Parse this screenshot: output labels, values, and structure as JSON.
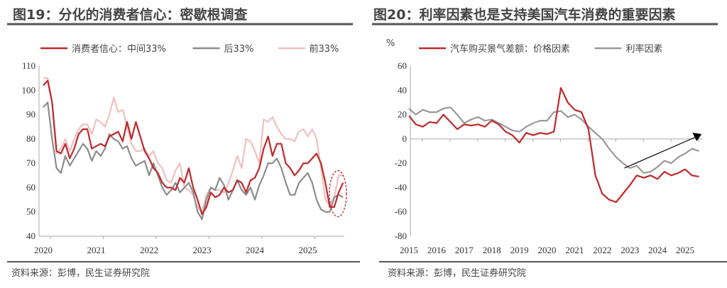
{
  "chart_data": [
    {
      "type": "line",
      "title": "图19：分化的消费者信心：密歇根调查",
      "source": "资料来源：彭博，民生证券研究院",
      "ylim": [
        40,
        110
      ],
      "yticks": [
        40,
        50,
        60,
        70,
        80,
        90,
        100,
        110
      ],
      "xticks": [
        "2020",
        "2021",
        "2022",
        "2023",
        "2024",
        "2025"
      ],
      "x_start": "2020-01",
      "frequency": "monthly",
      "series": [
        {
          "name": "消费者信心：中间33%",
          "color": "#c0282a",
          "values": [
            102,
            104,
            95,
            75,
            74,
            78,
            72,
            76,
            82,
            84,
            84,
            76,
            77,
            78,
            77,
            81,
            82,
            83,
            79,
            87,
            80,
            87,
            81,
            75,
            72,
            68,
            66,
            62,
            60,
            60,
            59,
            64,
            62,
            68,
            60,
            55,
            49,
            52,
            58,
            56,
            57,
            60,
            58,
            59,
            63,
            62,
            58,
            63,
            64,
            68,
            76,
            81,
            73,
            78,
            78,
            70,
            68,
            65,
            67,
            70,
            70,
            72,
            74,
            70,
            62,
            52,
            52,
            58,
            62
          ]
        },
        {
          "name": "后33%",
          "color": "#8c8c8c",
          "values": [
            93,
            95,
            80,
            68,
            66,
            73,
            69,
            72,
            75,
            78,
            76,
            71,
            75,
            73,
            76,
            82,
            80,
            79,
            76,
            77,
            72,
            69,
            70,
            71,
            65,
            70,
            65,
            60,
            57,
            59,
            62,
            58,
            60,
            62,
            58,
            50,
            47,
            55,
            60,
            59,
            64,
            61,
            55,
            59,
            63,
            59,
            57,
            60,
            55,
            61,
            65,
            70,
            70,
            72,
            68,
            62,
            57,
            57,
            62,
            64,
            66,
            62,
            55,
            51,
            50,
            50,
            56,
            57,
            56
          ]
        },
        {
          "name": "前33%",
          "color": "#f0c0c0",
          "values": [
            105,
            105,
            95,
            74,
            76,
            80,
            75,
            80,
            84,
            86,
            86,
            82,
            88,
            87,
            85,
            90,
            97,
            91,
            92,
            85,
            78,
            75,
            75,
            76,
            73,
            75,
            70,
            68,
            63,
            62,
            67,
            70,
            60,
            59,
            57,
            52,
            50,
            57,
            60,
            59,
            59,
            58,
            62,
            67,
            73,
            68,
            80,
            79,
            75,
            70,
            88,
            87,
            89,
            85,
            82,
            80,
            80,
            79,
            83,
            84,
            81,
            84,
            80,
            68,
            55,
            53,
            56,
            65,
            65
          ]
        }
      ],
      "annotation": {
        "type": "dashed-ellipse",
        "color": "#c0282a",
        "x": "2025",
        "y_range": [
          48,
          67
        ]
      }
    },
    {
      "type": "line",
      "title": "图20：利率因素也是支持美国汽车消费的重要因素",
      "source": "资料来源：彭博，民生证券研究院",
      "ylabel": "%",
      "ylim": [
        -80,
        60
      ],
      "yticks": [
        -80,
        -60,
        -40,
        -20,
        0,
        20,
        40,
        60
      ],
      "xticks": [
        "2015",
        "2016",
        "2017",
        "2018",
        "2019",
        "2020",
        "2021",
        "2022",
        "2023",
        "2024",
        "2025"
      ],
      "x_start": "2015-Q1",
      "frequency": "quarterly",
      "series": [
        {
          "name": "汽车购买景气差额：价格因素",
          "color": "#c0282a",
          "values": [
            19,
            12,
            10,
            14,
            13,
            20,
            14,
            8,
            12,
            11,
            12,
            10,
            15,
            12,
            6,
            3,
            -3,
            5,
            3,
            5,
            4,
            6,
            42,
            30,
            24,
            22,
            8,
            -30,
            -45,
            -50,
            -52,
            -45,
            -38,
            -30,
            -32,
            -30,
            -33,
            -27,
            -30,
            -28,
            -25,
            -30,
            -31
          ]
        },
        {
          "name": "利率因素",
          "color": "#999999",
          "values": [
            25,
            20,
            24,
            22,
            22,
            25,
            26,
            20,
            13,
            16,
            18,
            15,
            16,
            13,
            10,
            7,
            6,
            10,
            13,
            15,
            15,
            22,
            23,
            18,
            20,
            16,
            10,
            5,
            0,
            -8,
            -15,
            -20,
            -24,
            -22,
            -28,
            -27,
            -23,
            -18,
            -20,
            -15,
            -12,
            -8,
            -10
          ]
        }
      ],
      "annotation": {
        "type": "arrow",
        "color": "#000000",
        "from": [
          2022.8,
          -24
        ],
        "to": [
          2025.6,
          4
        ]
      }
    }
  ]
}
